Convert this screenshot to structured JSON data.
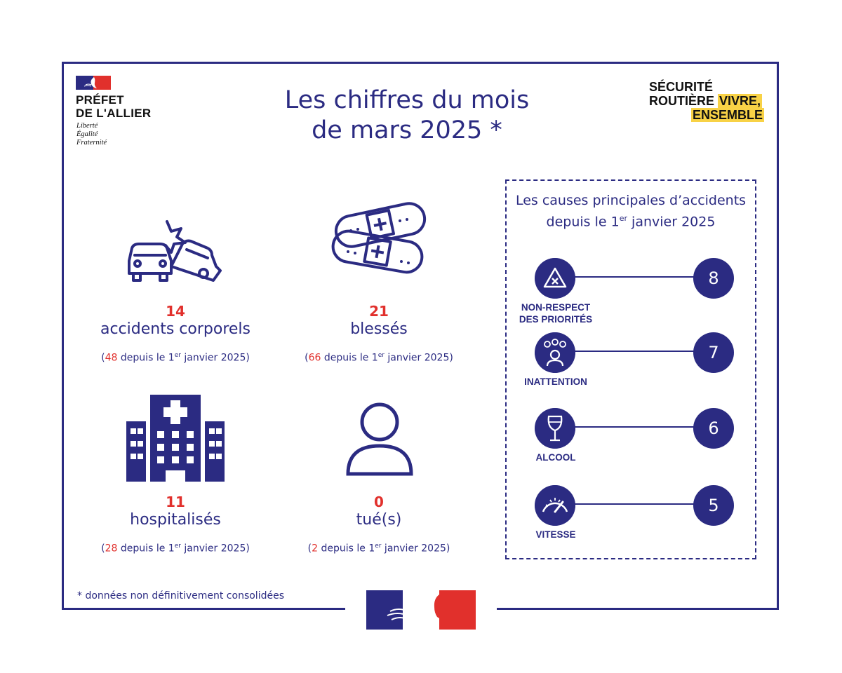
{
  "header": {
    "prefet_line1": "PRÉFET",
    "prefet_line2": "DE L'ALLIER",
    "devise": [
      "Liberté",
      "Égalité",
      "Fraternité"
    ],
    "title_line1": "Les chiffres du mois",
    "title_line2": "de mars 2025 *",
    "sr_line1": "SÉCURITÉ",
    "sr_line2": "ROUTIÈRE",
    "sr_hl1": "VIVRE,",
    "sr_hl2": "ENSEMBLE"
  },
  "stats": [
    {
      "icon": "car-crash-icon",
      "value": "14",
      "label": "accidents corporels",
      "since_value": "48",
      "since_prefix": "(",
      "since_text": " depuis le 1",
      "since_sup": "er",
      "since_suffix": " janvier 2025)"
    },
    {
      "icon": "bandages-icon",
      "value": "21",
      "label": "blessés",
      "since_value": "66",
      "since_prefix": "(",
      "since_text": " depuis le 1",
      "since_sup": "er",
      "since_suffix": " janvier 2025)"
    },
    {
      "icon": "hospital-icon",
      "value": "11",
      "label": "hospitalisés",
      "since_value": "28",
      "since_prefix": "(",
      "since_text": " depuis le 1",
      "since_sup": "er",
      "since_suffix": " janvier 2025)"
    },
    {
      "icon": "person-icon",
      "value": "0",
      "label": "tué(s)",
      "since_value": "2",
      "since_prefix": "(",
      "since_text": " depuis le 1",
      "since_sup": "er",
      "since_suffix": " janvier 2025)"
    }
  ],
  "causes": {
    "title_line1": "Les causes principales d’accidents",
    "title_line2_a": "depuis le 1",
    "title_line2_sup": "er",
    "title_line2_b": " janvier 2025",
    "items": [
      {
        "icon": "warning-triangle-icon",
        "label_line1": "NON-RESPECT",
        "label_line2": "DES PRIORITÉS",
        "value": "8"
      },
      {
        "icon": "distracted-person-icon",
        "label_line1": "INATTENTION",
        "label_line2": "",
        "value": "7"
      },
      {
        "icon": "wine-glass-icon",
        "label_line1": "ALCOOL",
        "label_line2": "",
        "value": "6"
      },
      {
        "icon": "speedometer-icon",
        "label_line1": "VITESSE",
        "label_line2": "",
        "value": "5"
      }
    ]
  },
  "footnote": "* données non définitivement consolidées",
  "colors": {
    "navy": "#2b2b82",
    "red": "#e1302c",
    "yellow": "#f8d246"
  }
}
